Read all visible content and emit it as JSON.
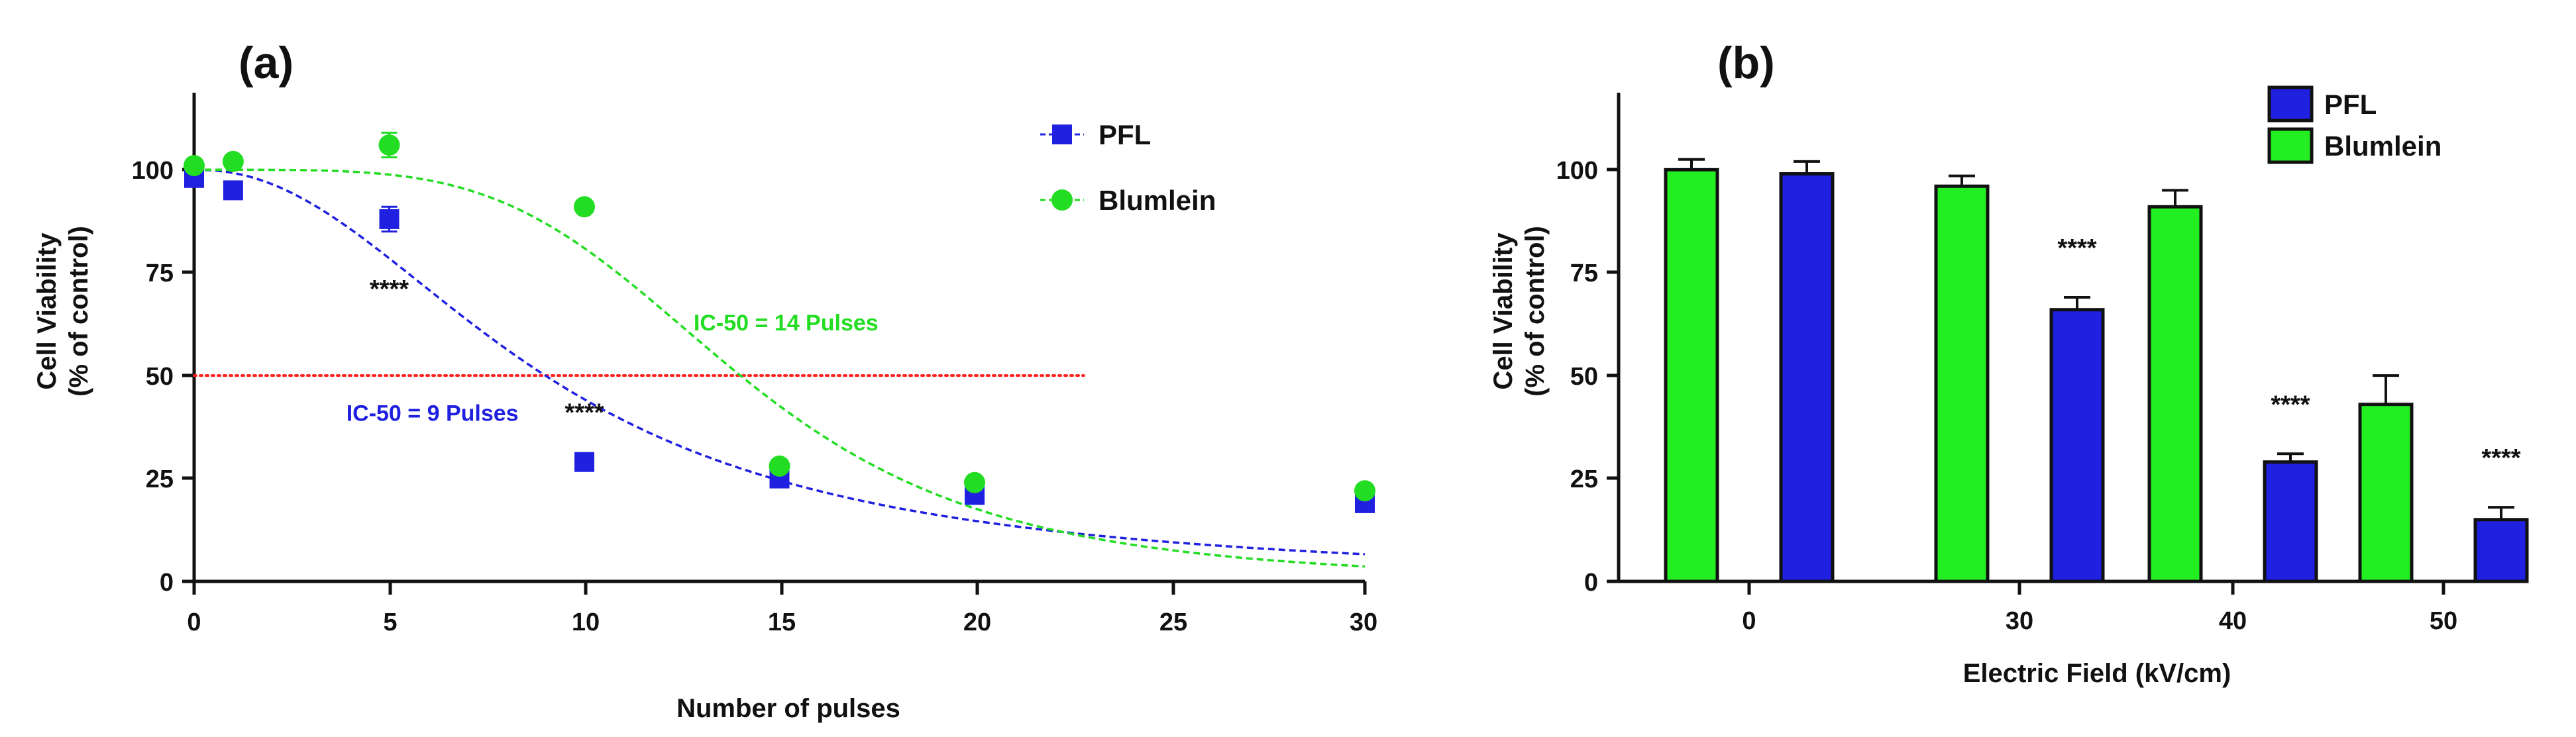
{
  "chart_data": [
    {
      "panel": "(a)",
      "type": "scatter",
      "xlabel": "Number of pulses",
      "ylabel_line1": "Cell Viability",
      "ylabel_line2": "(% of control)",
      "xlim": [
        0,
        30
      ],
      "ylim": [
        0,
        120
      ],
      "xticks": [
        0,
        5,
        10,
        15,
        20,
        25,
        30
      ],
      "yticks": [
        0,
        25,
        50,
        75,
        100
      ],
      "legend": [
        "PFL",
        "Blumlein"
      ],
      "series": [
        {
          "name": "PFL",
          "color": "#2020e0",
          "marker": "square",
          "x": [
            0,
            1,
            5,
            10,
            15,
            20,
            30
          ],
          "y": [
            98,
            95,
            88,
            29,
            25,
            21,
            19
          ],
          "err": [
            0,
            0,
            3,
            0,
            0,
            0,
            0
          ],
          "fit": {
            "ic50": 9,
            "hill": 2.2,
            "top": 100,
            "bottom": 0
          }
        },
        {
          "name": "Blumlein",
          "color": "#22dd22",
          "marker": "circle",
          "x": [
            0,
            1,
            5,
            10,
            15,
            20,
            30
          ],
          "y": [
            101,
            102,
            106,
            91,
            28,
            24,
            22
          ],
          "err": [
            0,
            0,
            3,
            0,
            0,
            0,
            0
          ],
          "fit": {
            "ic50": 14,
            "hill": 4.3,
            "top": 100,
            "bottom": 0
          }
        }
      ],
      "reference_line": {
        "y": 50,
        "color": "#ff2020"
      },
      "annotations": [
        {
          "text": "IC-50 = 14 Pulses",
          "color": "#22dd22",
          "x": 12.8,
          "y": 61
        },
        {
          "text": "IC-50 = 9 Pulses",
          "color": "#2020e0",
          "x": 3.9,
          "y": 39
        },
        {
          "text": "****",
          "color": "#111111",
          "x": 5,
          "y": 69
        },
        {
          "text": "****",
          "color": "#111111",
          "x": 10,
          "y": 39
        }
      ]
    },
    {
      "panel": "(b)",
      "type": "bar",
      "xlabel": "Electric Field (kV/cm)",
      "ylabel_line1": "Cell Viability",
      "ylabel_line2": "(% of control)",
      "categories": [
        "0",
        "30",
        "40",
        "50"
      ],
      "ylim": [
        0,
        120
      ],
      "yticks": [
        0,
        25,
        50,
        75,
        100
      ],
      "legend": [
        "PFL",
        "Blumlein"
      ],
      "series": [
        {
          "name": "Blumlein",
          "color": "#22ee22",
          "values": [
            100,
            96,
            91,
            43
          ],
          "err": [
            2.5,
            2.5,
            4,
            7
          ]
        },
        {
          "name": "PFL",
          "color": "#2020e0",
          "values": [
            99,
            66,
            29,
            15
          ],
          "err": [
            3,
            3,
            2,
            3
          ]
        }
      ],
      "significance": [
        "",
        "****",
        "****",
        "****"
      ]
    }
  ]
}
